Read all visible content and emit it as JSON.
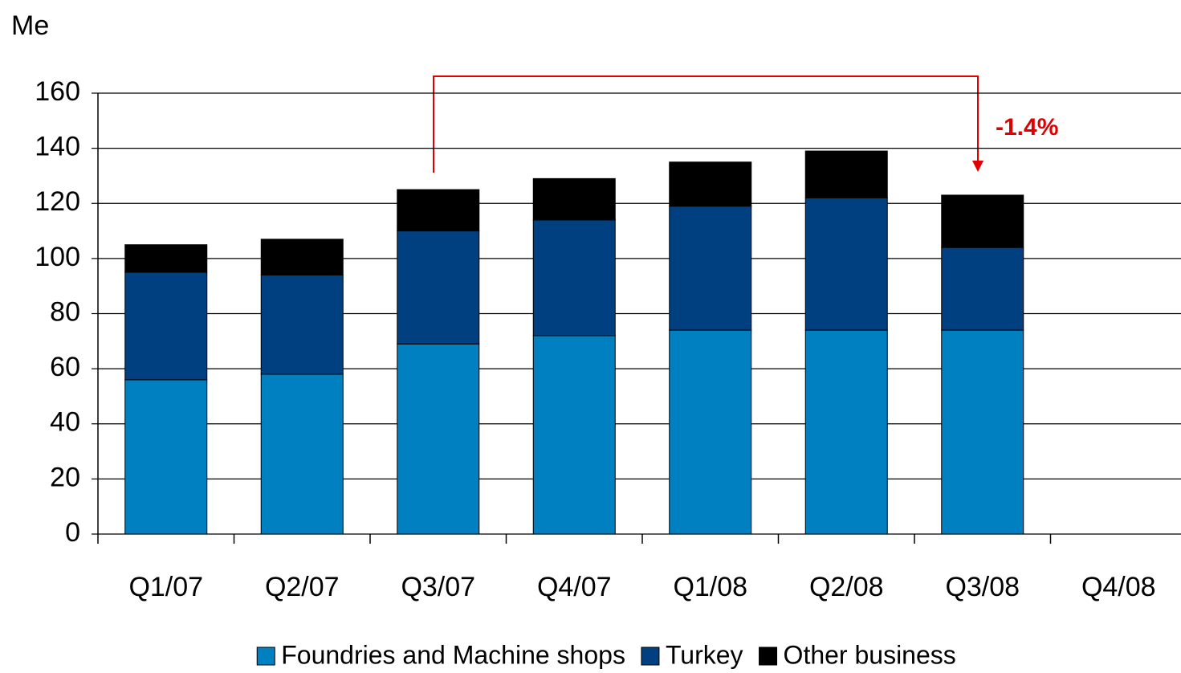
{
  "chart_data": {
    "type": "bar",
    "stacked": true,
    "unit_label": "Me",
    "categories": [
      "Q1/07",
      "Q2/07",
      "Q3/07",
      "Q4/07",
      "Q1/08",
      "Q2/08",
      "Q3/08",
      "Q4/08"
    ],
    "series": [
      {
        "name": "Foundries and Machine shops",
        "color": "#0080c0",
        "values": [
          56,
          58,
          69,
          72,
          74,
          74,
          74,
          null
        ]
      },
      {
        "name": "Turkey",
        "color": "#003f80",
        "values": [
          39,
          36,
          41,
          42,
          45,
          48,
          30,
          null
        ]
      },
      {
        "name": "Other business",
        "color": "#000000",
        "values": [
          10,
          13,
          15,
          15,
          16,
          17,
          19,
          null
        ]
      }
    ],
    "ylim": [
      0,
      160
    ],
    "yticks": [
      0,
      20,
      40,
      60,
      80,
      100,
      120,
      140,
      160
    ],
    "grid": true,
    "legend": "bottom",
    "annotation": "-1.4%"
  }
}
